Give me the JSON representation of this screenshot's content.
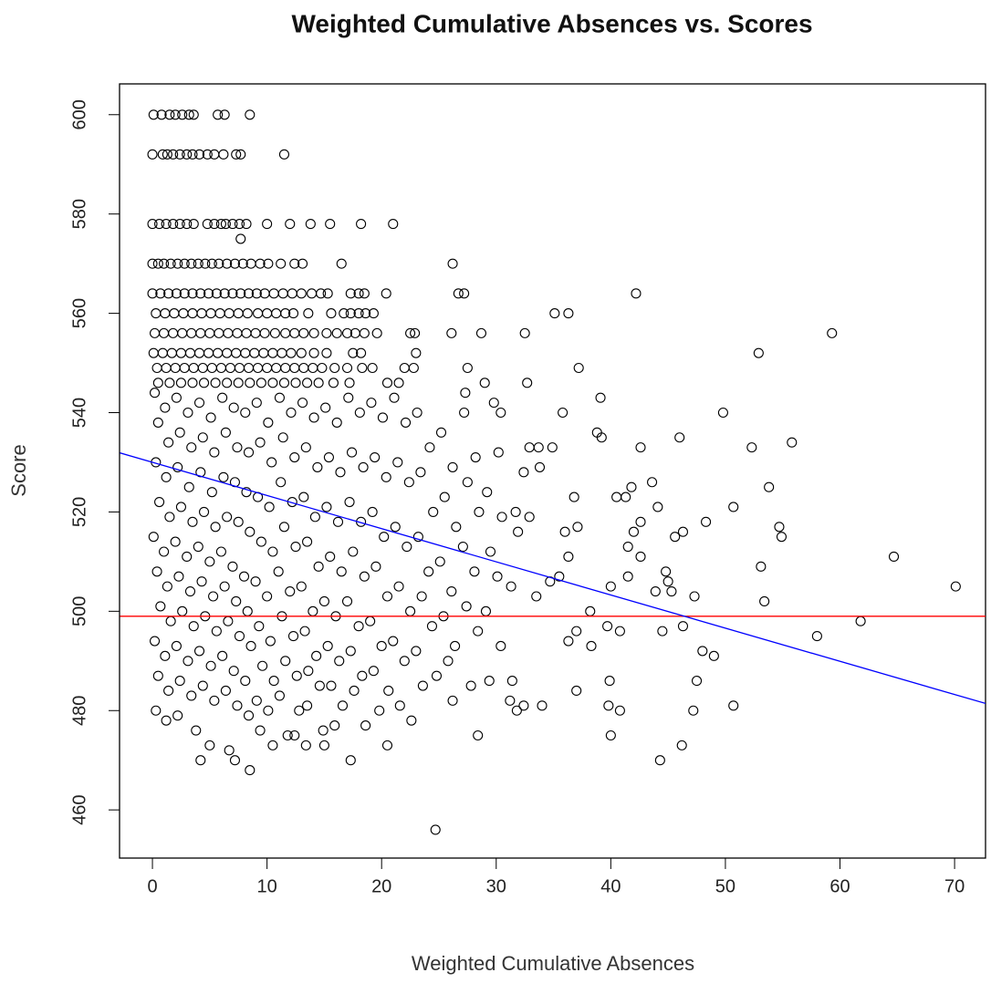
{
  "chart_data": {
    "type": "scatter",
    "title": "Weighted Cumulative Absences vs. Scores",
    "x_label": "Weighted Cumulative Absences",
    "y_label": "Score",
    "xlim": [
      -2.87,
      72.7
    ],
    "ylim": [
      450.3,
      606.2
    ],
    "xticks": [
      0,
      10,
      20,
      30,
      40,
      50,
      60,
      70
    ],
    "yticks": [
      460,
      480,
      500,
      520,
      540,
      560,
      580,
      600
    ],
    "color": "#000000",
    "reference_lines": [
      {
        "kind": "hline",
        "y": 499,
        "color": "#ff0000"
      },
      {
        "kind": "abline",
        "intercept": 530,
        "slope": -0.668,
        "color": "#0000ff"
      }
    ],
    "x": [
      0.1,
      0.8,
      1.5,
      2,
      2.6,
      3.2,
      3.6,
      5.7,
      6.3,
      8.5,
      0,
      0.9,
      1.3,
      1.8,
      2.4,
      3,
      3.5,
      4.1,
      4.8,
      5.4,
      6.2,
      7.3,
      7.7,
      11.5,
      0,
      0.6,
      1.2,
      1.8,
      2.4,
      3,
      3.6,
      4.8,
      5.4,
      6,
      6.4,
      7,
      7.6,
      8.2,
      10,
      12,
      13.8,
      15.5,
      18.2,
      21,
      7.7,
      0,
      0.5,
      1,
      1.6,
      2.2,
      2.8,
      3.4,
      4,
      4.6,
      5.2,
      5.8,
      6.5,
      7.2,
      7.9,
      8.6,
      9.4,
      10.1,
      11.2,
      12.4,
      13.1,
      16.5,
      26.2,
      0,
      0.7,
      1.4,
      2.1,
      2.8,
      3.5,
      4.2,
      4.9,
      5.6,
      6.3,
      7,
      7.7,
      8.4,
      9.1,
      9.8,
      10.6,
      11.4,
      12.2,
      13,
      13.9,
      14.7,
      15.3,
      17.3,
      18,
      18.5,
      20.4,
      26.7,
      27.2,
      42.2,
      0.3,
      1.1,
      1.9,
      2.7,
      3.5,
      4.3,
      5.1,
      5.9,
      6.7,
      7.5,
      8.3,
      9.2,
      10,
      10.8,
      11.6,
      12.3,
      13.6,
      15.6,
      16.7,
      17.3,
      18,
      18.6,
      19.3,
      35.1,
      36.3,
      0.2,
      1,
      1.8,
      2.6,
      3.4,
      4.2,
      5,
      5.8,
      6.6,
      7.4,
      8.2,
      9,
      9.8,
      10.7,
      11.6,
      12.4,
      13.2,
      14.1,
      15.2,
      16.1,
      17,
      17.7,
      18.5,
      19.6,
      22.5,
      22.9,
      26.1,
      28.7,
      32.5,
      59.3,
      0.1,
      0.9,
      1.7,
      2.5,
      3.3,
      4.1,
      4.9,
      5.7,
      6.5,
      7.3,
      8.1,
      8.9,
      9.7,
      10.5,
      11.3,
      12.1,
      13,
      14.1,
      15.2,
      17.5,
      18.2,
      23,
      52.9,
      0.4,
      1.2,
      2,
      2.8,
      3.6,
      4.4,
      5.2,
      6,
      6.8,
      7.6,
      8.4,
      9.2,
      10,
      10.8,
      11.6,
      12.4,
      13.2,
      14,
      14.8,
      15.9,
      17,
      18.3,
      19.2,
      22,
      22.8,
      27.5,
      37.2,
      0.5,
      1.5,
      2.5,
      3.5,
      4.5,
      5.5,
      6.5,
      7.5,
      8.5,
      9.5,
      10.5,
      11.5,
      12.5,
      13.5,
      14.5,
      15.8,
      17.2,
      20.5,
      21.5,
      29,
      0.2,
      0.5,
      0.3,
      0.6,
      0.1,
      0.4,
      0.7,
      0.2,
      0.5,
      0.3,
      1.1,
      1.4,
      1.2,
      1.5,
      1,
      1.3,
      1.6,
      1.1,
      1.4,
      1.2,
      2.1,
      2.4,
      2.2,
      2.5,
      2,
      2.3,
      2.6,
      2.1,
      2.4,
      2.2,
      3.1,
      3.4,
      3.2,
      3.5,
      3,
      3.3,
      3.6,
      3.1,
      3.4,
      3.8,
      4.1,
      4.4,
      4.2,
      4.5,
      4,
      4.3,
      4.6,
      4.1,
      4.4,
      4.2,
      5.1,
      5.4,
      5.2,
      5.5,
      5,
      5.3,
      5.6,
      5.1,
      5.4,
      5,
      6.1,
      6.4,
      6.2,
      6.5,
      6,
      6.3,
      6.6,
      6.1,
      6.4,
      6.7,
      7.1,
      7.4,
      7.2,
      7.5,
      7,
      7.3,
      7.6,
      7.1,
      7.4,
      7.2,
      8.1,
      8.4,
      8.2,
      8.5,
      8,
      8.3,
      8.6,
      8.1,
      8.4,
      8.5,
      9.1,
      9.4,
      9.2,
      9.5,
      9,
      9.3,
      9.6,
      9.1,
      9.4,
      10.1,
      10.4,
      10.2,
      10.5,
      10,
      10.3,
      10.6,
      10.1,
      10.5,
      11.1,
      11.4,
      11.2,
      11.5,
      11,
      11.3,
      11.6,
      11.1,
      11.8,
      12.1,
      12.4,
      12.2,
      12.5,
      12,
      12.3,
      12.6,
      12.8,
      12.4,
      13.1,
      13.4,
      13.2,
      13.5,
      13,
      13.3,
      13.6,
      13.5,
      13.4,
      14.1,
      14.4,
      14.2,
      14.5,
      14,
      14.3,
      14.6,
      14.9,
      15.1,
      15.4,
      15.2,
      15.5,
      15,
      15.3,
      15.6,
      15.9,
      15,
      16.1,
      16.4,
      16.2,
      16.5,
      16,
      16.3,
      16.6,
      17.1,
      17.4,
      17.2,
      17.5,
      17,
      17.3,
      17.6,
      17.3,
      18.1,
      18.4,
      18.2,
      18.5,
      18,
      18.3,
      18.6,
      19.1,
      19.4,
      19.2,
      19.5,
      19,
      19.3,
      19.8,
      20.1,
      20.4,
      20.2,
      20.5,
      20,
      20.6,
      20.5,
      21.1,
      21.4,
      21.2,
      21.5,
      21,
      21.6,
      22.1,
      22.4,
      22.2,
      22.5,
      22,
      22.6,
      23.1,
      23.4,
      23.2,
      23.5,
      23,
      23.6,
      24.2,
      24.5,
      24.1,
      24.4,
      24.8,
      25.2,
      25.5,
      25.1,
      25.4,
      25.8,
      26.2,
      26.5,
      26.1,
      26.4,
      27.2,
      27.5,
      27.1,
      27.4,
      27.8,
      28.2,
      28.5,
      28.1,
      28.4,
      29.2,
      29.5,
      29.1,
      29.4,
      30.2,
      30.5,
      30.1,
      30.4,
      24.7,
      70.1,
      64.7,
      61.8,
      58,
      55.8,
      53.8,
      49.8,
      50.7,
      52.3,
      54.7,
      54.9,
      53.1,
      53.4,
      50.7,
      46.2,
      44.3,
      47.3,
      47.5,
      47.2,
      48.3,
      48,
      49,
      46,
      46.3,
      45.6,
      45.3,
      44.8,
      45,
      43.9,
      44.1,
      43.6,
      41.3,
      42.6,
      41.8,
      42,
      42.6,
      42.6,
      41.5,
      41.5,
      40.5,
      40,
      39.9,
      39.7,
      40.8,
      39.8,
      40.8,
      40,
      39.1,
      38.8,
      39.2,
      35.8,
      36.8,
      37.1,
      36,
      36.3,
      37,
      37,
      35.5,
      34.7,
      33.5,
      34,
      32.7,
      32.9,
      33.7,
      34.9,
      33.8,
      32.4,
      31.7,
      31.9,
      32.9,
      31.3,
      31.4,
      32.4,
      31.8,
      31.2,
      30.4,
      29.8,
      27.3,
      28.4,
      26.2,
      44.5,
      38.3,
      46.3,
      38.2,
      36.3
    ],
    "values": [
      600,
      600,
      600,
      600,
      600,
      600,
      600,
      600,
      600,
      600,
      592,
      592,
      592,
      592,
      592,
      592,
      592,
      592,
      592,
      592,
      592,
      592,
      592,
      592,
      578,
      578,
      578,
      578,
      578,
      578,
      578,
      578,
      578,
      578,
      578,
      578,
      578,
      578,
      578,
      578,
      578,
      578,
      578,
      578,
      575,
      570,
      570,
      570,
      570,
      570,
      570,
      570,
      570,
      570,
      570,
      570,
      570,
      570,
      570,
      570,
      570,
      570,
      570,
      570,
      570,
      570,
      570,
      564,
      564,
      564,
      564,
      564,
      564,
      564,
      564,
      564,
      564,
      564,
      564,
      564,
      564,
      564,
      564,
      564,
      564,
      564,
      564,
      564,
      564,
      564,
      564,
      564,
      564,
      564,
      564,
      564,
      560,
      560,
      560,
      560,
      560,
      560,
      560,
      560,
      560,
      560,
      560,
      560,
      560,
      560,
      560,
      560,
      560,
      560,
      560,
      560,
      560,
      560,
      560,
      560,
      560,
      556,
      556,
      556,
      556,
      556,
      556,
      556,
      556,
      556,
      556,
      556,
      556,
      556,
      556,
      556,
      556,
      556,
      556,
      556,
      556,
      556,
      556,
      556,
      556,
      556,
      556,
      556,
      556,
      556,
      556,
      552,
      552,
      552,
      552,
      552,
      552,
      552,
      552,
      552,
      552,
      552,
      552,
      552,
      552,
      552,
      552,
      552,
      552,
      552,
      552,
      552,
      552,
      552,
      549,
      549,
      549,
      549,
      549,
      549,
      549,
      549,
      549,
      549,
      549,
      549,
      549,
      549,
      549,
      549,
      549,
      549,
      549,
      549,
      549,
      549,
      549,
      549,
      549,
      549,
      549,
      546,
      546,
      546,
      546,
      546,
      546,
      546,
      546,
      546,
      546,
      546,
      546,
      546,
      546,
      546,
      546,
      546,
      546,
      546,
      546,
      544,
      538,
      530,
      522,
      515,
      508,
      501,
      494,
      487,
      480,
      541,
      534,
      527,
      519,
      512,
      505,
      498,
      491,
      484,
      478,
      543,
      536,
      529,
      521,
      514,
      507,
      500,
      493,
      486,
      479,
      540,
      533,
      525,
      518,
      511,
      504,
      497,
      490,
      483,
      476,
      542,
      535,
      528,
      520,
      513,
      506,
      499,
      492,
      485,
      470,
      539,
      532,
      524,
      517,
      510,
      503,
      496,
      489,
      482,
      473,
      543,
      536,
      527,
      519,
      512,
      505,
      498,
      491,
      484,
      472,
      541,
      533,
      526,
      518,
      509,
      502,
      495,
      488,
      481,
      470,
      540,
      532,
      524,
      516,
      507,
      500,
      493,
      486,
      479,
      468,
      542,
      534,
      523,
      514,
      506,
      497,
      489,
      482,
      476,
      538,
      530,
      521,
      512,
      503,
      494,
      486,
      480,
      473,
      543,
      535,
      526,
      517,
      508,
      499,
      490,
      483,
      475,
      540,
      531,
      522,
      513,
      504,
      495,
      487,
      480,
      475,
      542,
      533,
      523,
      514,
      505,
      496,
      488,
      481,
      473,
      539,
      529,
      519,
      509,
      500,
      491,
      485,
      476,
      541,
      531,
      521,
      511,
      502,
      493,
      485,
      477,
      473,
      538,
      528,
      518,
      508,
      499,
      490,
      481,
      543,
      532,
      522,
      512,
      502,
      492,
      484,
      470,
      540,
      529,
      518,
      507,
      497,
      487,
      477,
      542,
      531,
      520,
      509,
      498,
      488,
      480,
      539,
      527,
      515,
      503,
      493,
      484,
      473,
      543,
      530,
      517,
      505,
      494,
      481,
      538,
      526,
      513,
      500,
      490,
      478,
      540,
      528,
      515,
      503,
      492,
      485,
      533,
      520,
      508,
      497,
      487,
      536,
      523,
      510,
      499,
      490,
      529,
      517,
      504,
      493,
      540,
      526,
      513,
      501,
      485,
      531,
      520,
      508,
      496,
      524,
      512,
      500,
      486,
      532,
      519,
      507,
      493,
      456,
      505,
      511,
      498,
      495,
      534,
      525,
      540,
      521,
      533,
      517,
      515,
      509,
      502,
      481,
      473,
      470,
      503,
      486,
      480,
      518,
      492,
      491,
      535,
      516,
      515,
      504,
      508,
      506,
      504,
      521,
      526,
      523,
      533,
      525,
      516,
      518,
      511,
      513,
      507,
      523,
      505,
      486,
      497,
      496,
      481,
      480,
      475,
      543,
      536,
      535,
      540,
      523,
      517,
      516,
      511,
      496,
      484,
      507,
      506,
      503,
      481,
      546,
      533,
      533,
      533,
      529,
      528,
      520,
      516,
      519,
      505,
      486,
      481,
      480,
      482,
      540,
      542,
      544,
      475,
      482,
      496,
      493,
      497,
      500,
      494
    ]
  }
}
